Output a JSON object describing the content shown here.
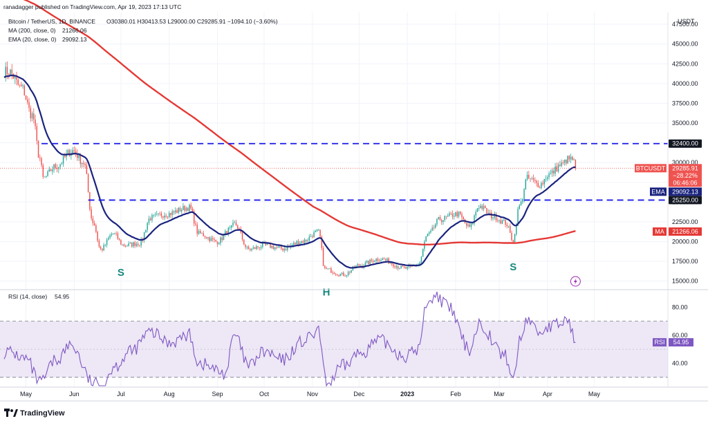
{
  "header": {
    "published_by": "ranadagger published on TradingView.com, Apr 19, 2023 17:13 UTC",
    "symbol": "Bitcoin / TetherUS, 1D, BINANCE",
    "ohlc": "O30380.01 H30413.53 L29000.00 C29285.91 −1094.10 (−3.60%)",
    "ma_label": "MA (200, close, 0)",
    "ma_value": "21266.06",
    "ema_label": "EMA (20, close, 0)",
    "ema_value": "29092.13",
    "rsi_label": "RSI (14, close)",
    "rsi_value": "54.95"
  },
  "footer": {
    "brand": "TradingView",
    "logo": "tradingview-logo"
  },
  "colors": {
    "up": "#26a69a",
    "down": "#ef5350",
    "ma": "#e53935",
    "ema": "#1a237e",
    "level": "#1a1ae6",
    "rsi": "#7e57c2",
    "rsi_band": "#ede7f6",
    "annot": "#17897d",
    "price_tag": "#ef5350"
  },
  "chart_data": [
    {
      "type": "candlestick",
      "title": "Bitcoin / TetherUS, 1D, BINANCE",
      "currency": "USDT",
      "x_labels": [
        "May",
        "Jun",
        "Jul",
        "Aug",
        "Sep",
        "Oct",
        "Nov",
        "Dec",
        "2023",
        "Feb",
        "Mar",
        "Apr",
        "May"
      ],
      "y_ticks": [
        "47500.00",
        "45000.00",
        "42500.00",
        "40000.00",
        "37500.00",
        "35000.00",
        "32500.00",
        "30000.00",
        "27500.00",
        "25000.00",
        "22500.00",
        "20000.00",
        "17500.00",
        "15000.00"
      ],
      "ylim": [
        14000,
        49000
      ],
      "price_anchors": [
        [
          "2022-04-20",
          41500
        ],
        [
          "2022-04-28",
          39500
        ],
        [
          "2022-05-05",
          36000
        ],
        [
          "2022-05-10",
          30500
        ],
        [
          "2022-05-12",
          28000
        ],
        [
          "2022-05-20",
          29500
        ],
        [
          "2022-05-31",
          31500
        ],
        [
          "2022-06-07",
          30000
        ],
        [
          "2022-06-13",
          22500
        ],
        [
          "2022-06-18",
          19000
        ],
        [
          "2022-06-26",
          21000
        ],
        [
          "2022-07-03",
          19500
        ],
        [
          "2022-07-13",
          19800
        ],
        [
          "2022-07-20",
          23000
        ],
        [
          "2022-07-30",
          23500
        ],
        [
          "2022-08-14",
          24300
        ],
        [
          "2022-08-20",
          21000
        ],
        [
          "2022-09-01",
          20000
        ],
        [
          "2022-09-09",
          21500
        ],
        [
          "2022-09-12",
          22200
        ],
        [
          "2022-09-21",
          19000
        ],
        [
          "2022-10-01",
          19500
        ],
        [
          "2022-10-13",
          19100
        ],
        [
          "2022-10-25",
          20000
        ],
        [
          "2022-11-05",
          21200
        ],
        [
          "2022-11-09",
          16500
        ],
        [
          "2022-11-21",
          15800
        ],
        [
          "2022-12-01",
          17000
        ],
        [
          "2022-12-14",
          17800
        ],
        [
          "2022-12-31",
          16600
        ],
        [
          "2023-01-08",
          17100
        ],
        [
          "2023-01-14",
          20800
        ],
        [
          "2023-01-22",
          22800
        ],
        [
          "2023-02-02",
          23500
        ],
        [
          "2023-02-10",
          21800
        ],
        [
          "2023-02-16",
          24500
        ],
        [
          "2023-02-25",
          23200
        ],
        [
          "2023-03-05",
          22400
        ],
        [
          "2023-03-10",
          20200
        ],
        [
          "2023-03-14",
          24500
        ],
        [
          "2023-03-19",
          28000
        ],
        [
          "2023-03-27",
          27200
        ],
        [
          "2023-04-02",
          28500
        ],
        [
          "2023-04-10",
          29700
        ],
        [
          "2023-04-14",
          30400
        ],
        [
          "2023-04-18",
          30380
        ]
      ],
      "last_candle": {
        "date": "2023-04-19",
        "open": 30380.01,
        "high": 30413.53,
        "low": 29000.0,
        "close": 29285.91
      },
      "series": [
        {
          "name": "MA (200, close, 0)",
          "last_value": 21266.06
        },
        {
          "name": "EMA (20, close, 0)",
          "last_value": 29092.13
        }
      ],
      "levels": [
        {
          "value": 32400.0,
          "label": "32400.00"
        },
        {
          "value": 25250.0,
          "label": "25250.00"
        }
      ],
      "price_tags": [
        {
          "id": "btcusdt",
          "title": "BTCUSDT",
          "value": "29285.91",
          "change": "−28.22%",
          "countdown": "06:46:06"
        },
        {
          "id": "ema",
          "title": "EMA",
          "value": "29092.13"
        },
        {
          "id": "ma",
          "title": "MA",
          "value": "21266.06"
        }
      ],
      "annotations": [
        {
          "text": "S",
          "date": "2022-07-01",
          "value": 16000
        },
        {
          "text": "H",
          "date": "2022-11-10",
          "value": 13500
        },
        {
          "text": "S",
          "date": "2023-03-10",
          "value": 16700
        }
      ]
    },
    {
      "type": "line",
      "title": "RSI (14, close)",
      "y_ticks": [
        "80.00",
        "60.00",
        "40.00"
      ],
      "ylim": [
        23,
        92
      ],
      "band": [
        30,
        70
      ],
      "last_value": 54.95,
      "rsi_anchors": [
        [
          "2022-04-20",
          48
        ],
        [
          "2022-05-01",
          43
        ],
        [
          "2022-05-10",
          26
        ],
        [
          "2022-05-20",
          42
        ],
        [
          "2022-05-30",
          53
        ],
        [
          "2022-06-13",
          26
        ],
        [
          "2022-06-18",
          23
        ],
        [
          "2022-06-27",
          38
        ],
        [
          "2022-07-07",
          48
        ],
        [
          "2022-07-20",
          62
        ],
        [
          "2022-08-01",
          55
        ],
        [
          "2022-08-14",
          60
        ],
        [
          "2022-08-20",
          40
        ],
        [
          "2022-09-06",
          33
        ],
        [
          "2022-09-12",
          60
        ],
        [
          "2022-09-21",
          38
        ],
        [
          "2022-10-01",
          48
        ],
        [
          "2022-10-13",
          42
        ],
        [
          "2022-10-25",
          55
        ],
        [
          "2022-11-05",
          62
        ],
        [
          "2022-11-10",
          25
        ],
        [
          "2022-11-21",
          38
        ],
        [
          "2022-12-01",
          47
        ],
        [
          "2022-12-14",
          56
        ],
        [
          "2022-12-31",
          45
        ],
        [
          "2023-01-08",
          50
        ],
        [
          "2023-01-14",
          85
        ],
        [
          "2023-01-20",
          88
        ],
        [
          "2023-01-27",
          80
        ],
        [
          "2023-02-10",
          50
        ],
        [
          "2023-02-16",
          68
        ],
        [
          "2023-03-05",
          45
        ],
        [
          "2023-03-10",
          28
        ],
        [
          "2023-03-14",
          55
        ],
        [
          "2023-03-19",
          72
        ],
        [
          "2023-03-27",
          62
        ],
        [
          "2023-04-02",
          66
        ],
        [
          "2023-04-10",
          68
        ],
        [
          "2023-04-14",
          72
        ],
        [
          "2023-04-19",
          54.95
        ]
      ]
    }
  ]
}
